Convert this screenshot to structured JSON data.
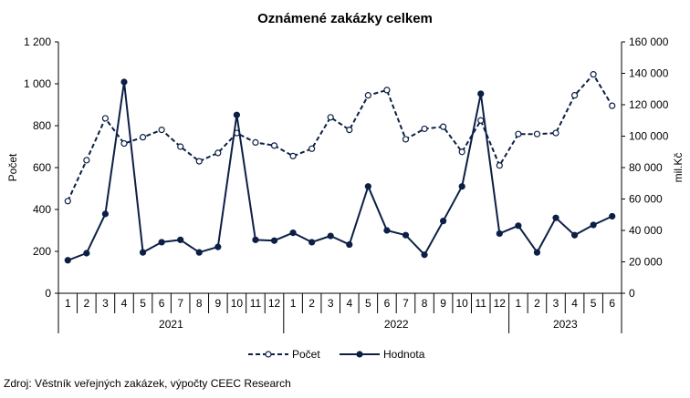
{
  "chart_data": {
    "type": "line",
    "title": "Oznámené zakázky celkem",
    "source": "Zdroj: Věstník veřejných zakázek, výpočty CEEC Research",
    "months": [
      "1",
      "2",
      "3",
      "4",
      "5",
      "6",
      "7",
      "8",
      "9",
      "10",
      "11",
      "12",
      "1",
      "2",
      "3",
      "4",
      "5",
      "6",
      "7",
      "8",
      "9",
      "10",
      "11",
      "12",
      "1",
      "2",
      "3",
      "4",
      "5",
      "6"
    ],
    "years": [
      {
        "label": "2021",
        "months": 12
      },
      {
        "label": "2022",
        "months": 12
      },
      {
        "label": "2023",
        "months": 6
      }
    ],
    "y_left": {
      "label": "Počet",
      "range": [
        0,
        1200
      ],
      "ticks": [
        0,
        200,
        400,
        600,
        800,
        1000,
        1200
      ],
      "tick_labels": [
        "0",
        "200",
        "400",
        "600",
        "800",
        "1 000",
        "1 200"
      ]
    },
    "y_right": {
      "label": "mil.Kč",
      "range": [
        0,
        160000
      ],
      "ticks": [
        0,
        20000,
        40000,
        60000,
        80000,
        100000,
        120000,
        140000,
        160000
      ],
      "tick_labels": [
        "0",
        "20 000",
        "40 000",
        "60 000",
        "80 000",
        "100 000",
        "120 000",
        "140 000",
        "160 000"
      ]
    },
    "series": [
      {
        "name": "Počet",
        "axis": "left",
        "style": "dashed",
        "marker": "open-circle",
        "values": [
          440,
          635,
          835,
          715,
          745,
          780,
          700,
          630,
          670,
          765,
          720,
          705,
          655,
          690,
          840,
          780,
          945,
          970,
          735,
          785,
          795,
          675,
          825,
          610,
          760,
          760,
          765,
          945,
          1045,
          895
        ]
      },
      {
        "name": "Hodnota",
        "axis": "right",
        "style": "solid",
        "marker": "filled-circle",
        "values": [
          21000,
          25500,
          50500,
          134500,
          26000,
          32500,
          34000,
          26000,
          29500,
          113500,
          34000,
          33500,
          38500,
          32500,
          36500,
          31000,
          68000,
          40000,
          37000,
          24500,
          46000,
          68000,
          127000,
          38000,
          43000,
          26000,
          48000,
          37000,
          43500,
          49000
        ]
      }
    ],
    "colors": {
      "line": "#0c1f45",
      "grid": "#000000",
      "background": "#ffffff"
    },
    "legend": {
      "position": "bottom"
    },
    "grid": false
  }
}
